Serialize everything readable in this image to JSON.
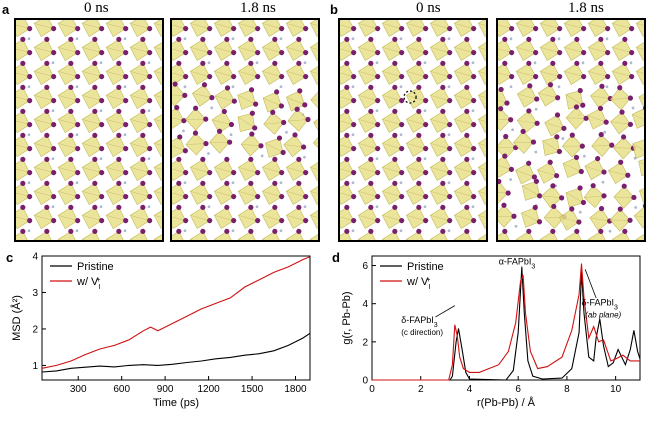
{
  "panels": {
    "a": {
      "label": "a",
      "time_left": "0 ns",
      "time_right": "1.8 ns"
    },
    "b": {
      "label": "b",
      "time_left": "0 ns",
      "time_right": "1.8 ns"
    },
    "c": {
      "label": "c"
    },
    "d": {
      "label": "d"
    }
  },
  "colors": {
    "octahedron": "#e8e18a",
    "octahedron_edge": "#b8ad3a",
    "iodide": "#7a1f6e",
    "pristine": "#000000",
    "vacancy": "#d01010"
  },
  "chart_data": [
    {
      "type": "line",
      "xlabel": "Time (ps)",
      "ylabel": "MSD (Å²)",
      "xticks": [
        300,
        600,
        900,
        1200,
        1500,
        1800
      ],
      "yticks": [
        1,
        2,
        3,
        4
      ],
      "xlim": [
        50,
        1900
      ],
      "ylim": [
        0.6,
        4.0
      ],
      "legend_position": "top-left",
      "series": [
        {
          "name": "Pristine",
          "color": "#000000",
          "x": [
            50,
            150,
            250,
            350,
            450,
            550,
            650,
            750,
            850,
            950,
            1050,
            1150,
            1250,
            1350,
            1450,
            1550,
            1650,
            1750,
            1850,
            1900
          ],
          "y": [
            0.82,
            0.85,
            0.92,
            0.95,
            0.98,
            0.96,
            1.0,
            1.02,
            1.0,
            1.03,
            1.08,
            1.12,
            1.18,
            1.22,
            1.28,
            1.32,
            1.4,
            1.55,
            1.75,
            1.88
          ]
        },
        {
          "name": "w/ V",
          "name_sup": "+",
          "name_sub": "I",
          "color": "#d01010",
          "x": [
            50,
            150,
            250,
            350,
            450,
            550,
            650,
            750,
            800,
            850,
            950,
            1050,
            1150,
            1250,
            1350,
            1450,
            1550,
            1650,
            1750,
            1850,
            1900
          ],
          "y": [
            0.92,
            1.0,
            1.12,
            1.3,
            1.45,
            1.55,
            1.7,
            1.95,
            2.05,
            1.95,
            2.15,
            2.35,
            2.55,
            2.7,
            2.85,
            3.15,
            3.35,
            3.55,
            3.7,
            3.9,
            3.98
          ]
        }
      ]
    },
    {
      "type": "line",
      "xlabel": "r(Pb-Pb) / Å",
      "ylabel": "g(r, Pb-Pb)",
      "xticks": [
        0,
        2,
        4,
        6,
        8,
        10
      ],
      "yticks": [
        0,
        2,
        4,
        6
      ],
      "xlim": [
        0,
        11
      ],
      "ylim": [
        0,
        6.5
      ],
      "legend_position": "top-left",
      "series": [
        {
          "name": "Pristine",
          "color": "#000000",
          "x": [
            0,
            3.2,
            3.3,
            3.45,
            3.55,
            3.7,
            3.85,
            4.0,
            5.5,
            5.8,
            6.0,
            6.15,
            6.25,
            6.4,
            6.6,
            7.0,
            7.8,
            8.2,
            8.5,
            8.6,
            8.7,
            8.9,
            9.1,
            9.2,
            9.35,
            9.5,
            9.7,
            9.9,
            10.1,
            10.4,
            10.6,
            10.75,
            10.9,
            11.0
          ],
          "y": [
            0,
            0,
            0.2,
            2.0,
            2.7,
            1.6,
            0.4,
            0.05,
            0,
            0.5,
            2.5,
            5.9,
            3.5,
            1.0,
            0.2,
            0.05,
            0.1,
            0.6,
            2.5,
            5.7,
            3.5,
            1.2,
            1.0,
            2.2,
            3.2,
            1.8,
            0.7,
            0.9,
            1.6,
            0.8,
            1.6,
            2.6,
            1.5,
            1.1
          ]
        },
        {
          "name": "w/ V",
          "name_sup": "+",
          "name_sub": "I",
          "color": "#d01010",
          "x": [
            0,
            3.15,
            3.3,
            3.4,
            3.5,
            3.6,
            3.75,
            4.0,
            4.4,
            5.2,
            5.6,
            5.9,
            6.1,
            6.2,
            6.3,
            6.5,
            6.8,
            7.2,
            7.8,
            8.2,
            8.5,
            8.6,
            8.7,
            8.9,
            9.1,
            9.3,
            9.5,
            9.8,
            10.0,
            10.3,
            10.6,
            10.9,
            11.0
          ],
          "y": [
            0,
            0,
            0.8,
            2.9,
            2.3,
            1.2,
            0.6,
            0.4,
            0.4,
            0.8,
            1.5,
            3.0,
            5.2,
            5.5,
            3.5,
            1.5,
            0.6,
            0.7,
            1.2,
            2.6,
            4.5,
            6.1,
            4.3,
            2.2,
            2.8,
            2.0,
            2.1,
            1.0,
            1.1,
            1.3,
            1.0,
            1.0,
            1.0
          ]
        }
      ],
      "annotations": [
        {
          "text": "α-FAPbI",
          "sub": "3"
        },
        {
          "text": "δ-FAPbI",
          "sub": "3",
          "note": "(ab plane)"
        },
        {
          "text": "δ-FAPbI",
          "sub": "3",
          "note": "(c direction)"
        }
      ]
    }
  ]
}
